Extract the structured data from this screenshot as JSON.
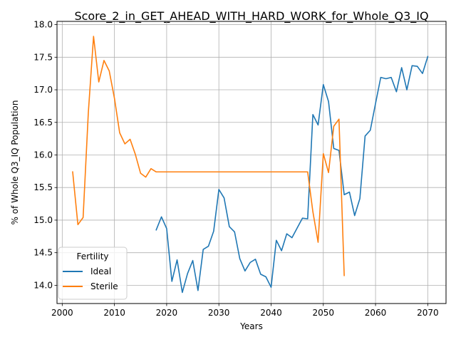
{
  "chart_data": {
    "type": "line",
    "title": "Score_2_in_GET_AHEAD_WITH_HARD_WORK_for_Whole_Q3_IQ",
    "xlabel": "Years",
    "ylabel": "% of Whole Q3_IQ Population",
    "xlim": [
      1999,
      2073.5
    ],
    "ylim": [
      13.72,
      18.05
    ],
    "xticks": [
      2000,
      2010,
      2020,
      2030,
      2040,
      2050,
      2060,
      2070
    ],
    "yticks": [
      14.0,
      14.5,
      15.0,
      15.5,
      16.0,
      16.5,
      17.0,
      17.5,
      18.0
    ],
    "grid": true,
    "legend": {
      "title": "Fertility",
      "placement": "lower-left"
    },
    "series": [
      {
        "name": "Ideal",
        "color": "#1f77b4",
        "x": [
          2018,
          2019,
          2020,
          2021,
          2022,
          2023,
          2024,
          2025,
          2026,
          2027,
          2028,
          2029,
          2030,
          2031,
          2032,
          2033,
          2034,
          2035,
          2036,
          2037,
          2038,
          2039,
          2040,
          2041,
          2042,
          2043,
          2044,
          2045,
          2046,
          2047,
          2048,
          2049,
          2050,
          2051,
          2052,
          2053,
          2054,
          2055,
          2056,
          2057,
          2058,
          2059,
          2060,
          2061,
          2062,
          2063,
          2064,
          2065,
          2066,
          2067,
          2068,
          2069,
          2070
        ],
        "y": [
          14.85,
          15.05,
          14.87,
          14.06,
          14.39,
          13.89,
          14.18,
          14.38,
          13.92,
          14.55,
          14.6,
          14.83,
          15.47,
          15.34,
          14.9,
          14.82,
          14.41,
          14.22,
          14.35,
          14.4,
          14.17,
          14.13,
          13.97,
          14.69,
          14.53,
          14.79,
          14.73,
          14.88,
          15.03,
          15.02,
          16.62,
          16.46,
          17.08,
          16.82,
          16.1,
          16.07,
          15.39,
          15.43,
          15.07,
          15.33,
          16.29,
          16.38,
          16.79,
          17.19,
          17.17,
          17.19,
          16.97,
          17.34,
          17.0,
          17.37,
          17.36,
          17.25,
          17.51
        ]
      },
      {
        "name": "Sterile",
        "color": "#ff7f0e",
        "x": [
          2002,
          2003,
          2004,
          2005,
          2006,
          2007,
          2008,
          2009,
          2010,
          2011,
          2012,
          2013,
          2014,
          2015,
          2016,
          2017,
          2018,
          2019,
          2020,
          2021,
          2022,
          2023,
          2024,
          2025,
          2026,
          2027,
          2028,
          2029,
          2030,
          2031,
          2032,
          2033,
          2034,
          2035,
          2036,
          2037,
          2038,
          2039,
          2040,
          2041,
          2042,
          2043,
          2044,
          2045,
          2046,
          2047,
          2048,
          2049,
          2050,
          2051,
          2052,
          2053,
          2054
        ],
        "y": [
          15.74,
          14.93,
          15.04,
          16.65,
          17.82,
          17.12,
          17.45,
          17.29,
          16.87,
          16.34,
          16.17,
          16.24,
          16.01,
          15.72,
          15.66,
          15.79,
          15.74,
          15.74,
          15.74,
          15.74,
          15.74,
          15.74,
          15.74,
          15.74,
          15.74,
          15.74,
          15.74,
          15.74,
          15.74,
          15.74,
          15.74,
          15.74,
          15.74,
          15.74,
          15.74,
          15.74,
          15.74,
          15.74,
          15.74,
          15.74,
          15.74,
          15.74,
          15.74,
          15.74,
          15.74,
          15.74,
          15.13,
          14.66,
          16.02,
          15.73,
          16.44,
          16.55,
          14.15
        ]
      }
    ]
  }
}
